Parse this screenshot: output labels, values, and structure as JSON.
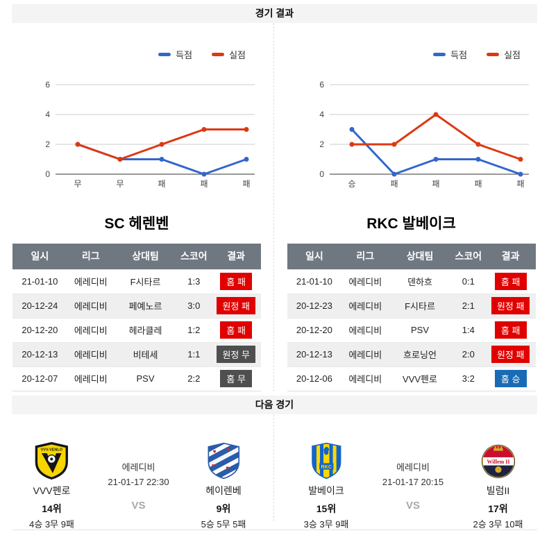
{
  "header": {
    "results": "경기 결과",
    "next": "다음 경기"
  },
  "legend": {
    "scored": "득점",
    "conceded": "실점"
  },
  "colors": {
    "scored_line": "#3366cc",
    "conceded_line": "#dc3912",
    "loss_badge": "#e00000",
    "draw_badge": "#4f4f4f",
    "win_badge": "#1a6bb5",
    "table_header_bg": "#6f7780",
    "section_header_bg": "#f4f4f4"
  },
  "chart_data": [
    {
      "type": "line",
      "team": "SC 헤렌벤",
      "categories": [
        "무",
        "무",
        "패",
        "패",
        "패"
      ],
      "series": [
        {
          "name": "득점",
          "color": "#3366cc",
          "values": [
            2,
            1,
            1,
            0,
            1
          ]
        },
        {
          "name": "실점",
          "color": "#dc3912",
          "values": [
            2,
            1,
            2,
            3,
            3
          ]
        }
      ],
      "ylim": [
        0,
        6
      ],
      "yticks": [
        0,
        2,
        4,
        6
      ],
      "legend_position": "top-right",
      "grid": true
    },
    {
      "type": "line",
      "team": "RKC 발베이크",
      "categories": [
        "승",
        "패",
        "패",
        "패",
        "패"
      ],
      "series": [
        {
          "name": "득점",
          "color": "#3366cc",
          "values": [
            3,
            0,
            1,
            1,
            0
          ]
        },
        {
          "name": "실점",
          "color": "#dc3912",
          "values": [
            2,
            2,
            4,
            2,
            1
          ]
        }
      ],
      "ylim": [
        0,
        6
      ],
      "yticks": [
        0,
        2,
        4,
        6
      ],
      "legend_position": "top-right",
      "grid": true
    }
  ],
  "tables": [
    {
      "title": "SC 헤렌벤",
      "headers": [
        "일시",
        "리그",
        "상대팀",
        "스코어",
        "결과"
      ],
      "rows": [
        {
          "date": "21-01-10",
          "league": "에레디비",
          "opponent": "F시타르",
          "score": "1:3",
          "result": "홈 패",
          "result_type": "loss"
        },
        {
          "date": "20-12-24",
          "league": "에레디비",
          "opponent": "페예노르",
          "score": "3:0",
          "result": "원정 패",
          "result_type": "loss"
        },
        {
          "date": "20-12-20",
          "league": "에레디비",
          "opponent": "헤라클레",
          "score": "1:2",
          "result": "홈 패",
          "result_type": "loss"
        },
        {
          "date": "20-12-13",
          "league": "에레디비",
          "opponent": "비테세",
          "score": "1:1",
          "result": "원정 무",
          "result_type": "draw"
        },
        {
          "date": "20-12-07",
          "league": "에레디비",
          "opponent": "PSV",
          "score": "2:2",
          "result": "홈 무",
          "result_type": "draw"
        }
      ]
    },
    {
      "title": "RKC 발베이크",
      "headers": [
        "일시",
        "리그",
        "상대팀",
        "스코어",
        "결과"
      ],
      "rows": [
        {
          "date": "21-01-10",
          "league": "에레디비",
          "opponent": "덴하흐",
          "score": "0:1",
          "result": "홈 패",
          "result_type": "loss"
        },
        {
          "date": "20-12-23",
          "league": "에레디비",
          "opponent": "F시타르",
          "score": "2:1",
          "result": "원정 패",
          "result_type": "loss"
        },
        {
          "date": "20-12-20",
          "league": "에레디비",
          "opponent": "PSV",
          "score": "1:4",
          "result": "홈 패",
          "result_type": "loss"
        },
        {
          "date": "20-12-13",
          "league": "에레디비",
          "opponent": "흐로닝언",
          "score": "2:0",
          "result": "원정 패",
          "result_type": "loss"
        },
        {
          "date": "20-12-06",
          "league": "에레디비",
          "opponent": "VVV펜로",
          "score": "3:2",
          "result": "홈 승",
          "result_type": "win"
        }
      ]
    }
  ],
  "next_matches": [
    {
      "league": "에레디비",
      "datetime": "21-01-17 22:30",
      "vs": "VS",
      "home": {
        "name": "VVV펜로",
        "rank": "14위",
        "record": "4승 3무 9패",
        "logo": "vvv-venlo-logo"
      },
      "away": {
        "name": "헤이렌베",
        "rank": "9위",
        "record": "5승 5무 5패",
        "logo": "heerenveen-logo"
      }
    },
    {
      "league": "에레디비",
      "datetime": "21-01-17 20:15",
      "vs": "VS",
      "home": {
        "name": "발베이크",
        "rank": "15위",
        "record": "3승 3무 9패",
        "logo": "rkc-waalwijk-logo"
      },
      "away": {
        "name": "빌럼II",
        "rank": "17위",
        "record": "2승 3무 10패",
        "logo": "willem2-logo"
      }
    }
  ]
}
